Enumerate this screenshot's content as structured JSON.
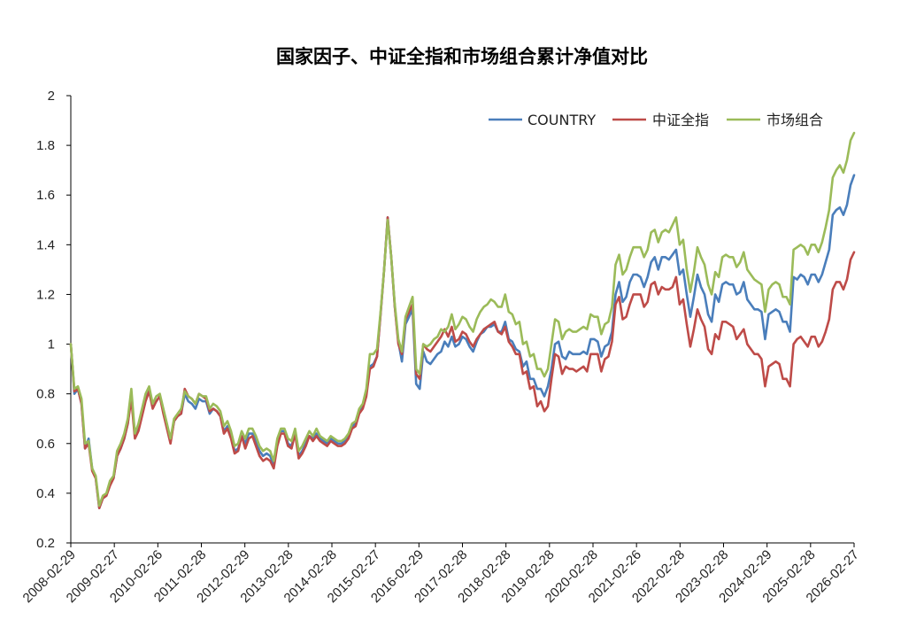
{
  "chart_data": {
    "type": "line",
    "title": "国家因子、中证全指和市场组合累计净值对比",
    "xlabel": "",
    "ylabel": "",
    "ylim": [
      0.2,
      2.0
    ],
    "yticks": [
      "0.2",
      "0.4",
      "0.6",
      "0.8",
      "1",
      "1.2",
      "1.4",
      "1.6",
      "1.8",
      "2"
    ],
    "xticks": [
      "2008-02-29",
      "2009-02-27",
      "2010-02-26",
      "2011-02-28",
      "2012-02-29",
      "2013-02-28",
      "2014-02-28",
      "2015-02-27",
      "2016-02-29",
      "2017-02-28",
      "2018-02-28",
      "2019-02-28",
      "2020-02-28",
      "2021-02-26",
      "2022-02-28",
      "2023-02-28",
      "2024-02-29",
      "2025-02-28",
      "2026-02-27"
    ],
    "grid": false,
    "legend_position": "top-right",
    "x_start": "2008-02",
    "x_end": "2026-02",
    "series": [
      {
        "name": "COUNTRY",
        "color": "#4a7ebb",
        "values": [
          1.0,
          0.8,
          0.82,
          0.76,
          0.58,
          0.62,
          0.5,
          0.46,
          0.34,
          0.38,
          0.39,
          0.44,
          0.46,
          0.55,
          0.58,
          0.62,
          0.68,
          0.8,
          0.63,
          0.66,
          0.72,
          0.78,
          0.82,
          0.75,
          0.77,
          0.79,
          0.73,
          0.67,
          0.61,
          0.69,
          0.71,
          0.72,
          0.8,
          0.77,
          0.76,
          0.74,
          0.78,
          0.77,
          0.77,
          0.72,
          0.74,
          0.73,
          0.71,
          0.65,
          0.67,
          0.63,
          0.57,
          0.58,
          0.63,
          0.6,
          0.64,
          0.64,
          0.61,
          0.57,
          0.55,
          0.56,
          0.55,
          0.51,
          0.6,
          0.65,
          0.65,
          0.6,
          0.59,
          0.65,
          0.55,
          0.57,
          0.6,
          0.63,
          0.62,
          0.64,
          0.62,
          0.61,
          0.6,
          0.62,
          0.61,
          0.6,
          0.6,
          0.61,
          0.63,
          0.67,
          0.68,
          0.73,
          0.75,
          0.8,
          0.91,
          0.92,
          0.95,
          1.12,
          1.3,
          1.51,
          1.35,
          1.15,
          1.01,
          0.93,
          1.08,
          1.11,
          1.14,
          0.84,
          0.82,
          0.97,
          0.93,
          0.92,
          0.94,
          0.96,
          0.97,
          1.01,
          0.99,
          1.03,
          0.99,
          1.0,
          1.03,
          1.02,
          0.99,
          0.97,
          1.01,
          1.04,
          1.05,
          1.07,
          1.07,
          1.08,
          1.05,
          1.05,
          1.09,
          1.02,
          1.01,
          0.98,
          0.97,
          0.91,
          0.93,
          0.86,
          0.86,
          0.82,
          0.82,
          0.79,
          0.83,
          0.9,
          1.0,
          1.01,
          0.95,
          0.94,
          0.97,
          0.96,
          0.96,
          0.96,
          0.97,
          0.96,
          1.02,
          1.02,
          1.01,
          0.95,
          0.99,
          1.0,
          1.05,
          1.2,
          1.25,
          1.17,
          1.19,
          1.25,
          1.28,
          1.28,
          1.27,
          1.23,
          1.27,
          1.33,
          1.35,
          1.3,
          1.35,
          1.35,
          1.34,
          1.36,
          1.38,
          1.28,
          1.3,
          1.2,
          1.11,
          1.19,
          1.28,
          1.23,
          1.2,
          1.12,
          1.09,
          1.2,
          1.17,
          1.24,
          1.25,
          1.24,
          1.24,
          1.2,
          1.21,
          1.25,
          1.18,
          1.16,
          1.14,
          1.14,
          1.13,
          1.02,
          1.12,
          1.13,
          1.14,
          1.13,
          1.09,
          1.09,
          1.05,
          1.27,
          1.26,
          1.28,
          1.27,
          1.24,
          1.28,
          1.28,
          1.25,
          1.28,
          1.33,
          1.38,
          1.52,
          1.54,
          1.55,
          1.52,
          1.56,
          1.64,
          1.68
        ]
      },
      {
        "name": "中证全指",
        "color": "#be4b48",
        "values": [
          1.0,
          0.81,
          0.82,
          0.76,
          0.58,
          0.6,
          0.49,
          0.46,
          0.34,
          0.38,
          0.39,
          0.43,
          0.46,
          0.55,
          0.58,
          0.62,
          0.68,
          0.78,
          0.62,
          0.65,
          0.71,
          0.77,
          0.81,
          0.74,
          0.77,
          0.79,
          0.72,
          0.66,
          0.6,
          0.69,
          0.71,
          0.72,
          0.82,
          0.79,
          0.78,
          0.76,
          0.8,
          0.79,
          0.78,
          0.73,
          0.74,
          0.73,
          0.71,
          0.64,
          0.66,
          0.62,
          0.56,
          0.57,
          0.63,
          0.58,
          0.62,
          0.63,
          0.59,
          0.55,
          0.53,
          0.54,
          0.53,
          0.5,
          0.59,
          0.64,
          0.64,
          0.59,
          0.58,
          0.64,
          0.54,
          0.56,
          0.59,
          0.63,
          0.61,
          0.63,
          0.61,
          0.6,
          0.59,
          0.61,
          0.6,
          0.59,
          0.59,
          0.6,
          0.62,
          0.66,
          0.67,
          0.72,
          0.74,
          0.79,
          0.9,
          0.91,
          0.95,
          1.12,
          1.3,
          1.51,
          1.35,
          1.15,
          1.0,
          0.96,
          1.1,
          1.13,
          1.16,
          0.88,
          0.86,
          1.0,
          0.98,
          0.97,
          0.99,
          1.01,
          1.03,
          1.06,
          1.03,
          1.07,
          1.01,
          1.02,
          1.05,
          1.04,
          1.01,
          0.99,
          1.02,
          1.04,
          1.06,
          1.07,
          1.08,
          1.09,
          1.05,
          1.04,
          1.07,
          1.01,
          0.99,
          0.96,
          0.96,
          0.88,
          0.89,
          0.82,
          0.83,
          0.75,
          0.77,
          0.73,
          0.75,
          0.86,
          0.96,
          0.95,
          0.88,
          0.91,
          0.9,
          0.9,
          0.89,
          0.9,
          0.91,
          0.89,
          0.96,
          0.96,
          0.96,
          0.89,
          0.94,
          0.95,
          1.01,
          1.16,
          1.19,
          1.1,
          1.11,
          1.16,
          1.2,
          1.2,
          1.2,
          1.15,
          1.17,
          1.24,
          1.25,
          1.2,
          1.23,
          1.22,
          1.22,
          1.23,
          1.27,
          1.16,
          1.18,
          1.08,
          0.99,
          1.06,
          1.14,
          1.1,
          1.07,
          0.98,
          0.96,
          1.04,
          1.02,
          1.09,
          1.09,
          1.08,
          1.07,
          1.02,
          1.04,
          1.06,
          1.0,
          0.98,
          0.96,
          0.96,
          0.94,
          0.83,
          0.91,
          0.92,
          0.93,
          0.92,
          0.86,
          0.86,
          0.83,
          1.0,
          1.02,
          1.03,
          1.01,
          0.99,
          1.03,
          1.03,
          0.99,
          1.01,
          1.05,
          1.1,
          1.22,
          1.25,
          1.25,
          1.22,
          1.26,
          1.34,
          1.37
        ]
      },
      {
        "name": "市场组合",
        "color": "#9bbb59",
        "values": [
          1.0,
          0.82,
          0.83,
          0.78,
          0.6,
          0.61,
          0.5,
          0.47,
          0.35,
          0.39,
          0.4,
          0.45,
          0.47,
          0.57,
          0.6,
          0.64,
          0.7,
          0.82,
          0.64,
          0.68,
          0.74,
          0.8,
          0.83,
          0.76,
          0.79,
          0.8,
          0.74,
          0.68,
          0.62,
          0.7,
          0.72,
          0.74,
          0.81,
          0.79,
          0.78,
          0.76,
          0.8,
          0.79,
          0.79,
          0.74,
          0.76,
          0.75,
          0.73,
          0.67,
          0.69,
          0.65,
          0.59,
          0.6,
          0.65,
          0.62,
          0.66,
          0.66,
          0.63,
          0.59,
          0.57,
          0.58,
          0.57,
          0.53,
          0.62,
          0.66,
          0.66,
          0.62,
          0.61,
          0.66,
          0.57,
          0.59,
          0.62,
          0.65,
          0.63,
          0.66,
          0.63,
          0.62,
          0.61,
          0.63,
          0.62,
          0.61,
          0.61,
          0.62,
          0.64,
          0.68,
          0.69,
          0.74,
          0.76,
          0.82,
          0.96,
          0.96,
          0.98,
          1.13,
          1.3,
          1.5,
          1.35,
          1.16,
          1.02,
          0.97,
          1.11,
          1.15,
          1.19,
          0.9,
          0.88,
          1.0,
          0.99,
          1.0,
          1.02,
          1.03,
          1.06,
          1.05,
          1.07,
          1.12,
          1.06,
          1.08,
          1.11,
          1.1,
          1.07,
          1.05,
          1.1,
          1.13,
          1.15,
          1.16,
          1.18,
          1.17,
          1.15,
          1.15,
          1.2,
          1.13,
          1.12,
          1.08,
          1.09,
          1.0,
          1.01,
          0.95,
          0.96,
          0.9,
          0.9,
          0.87,
          0.9,
          1.0,
          1.1,
          1.09,
          1.02,
          1.05,
          1.06,
          1.05,
          1.05,
          1.06,
          1.07,
          1.06,
          1.12,
          1.11,
          1.11,
          1.04,
          1.08,
          1.09,
          1.15,
          1.32,
          1.36,
          1.28,
          1.3,
          1.35,
          1.39,
          1.39,
          1.39,
          1.35,
          1.38,
          1.45,
          1.46,
          1.41,
          1.45,
          1.46,
          1.45,
          1.48,
          1.51,
          1.4,
          1.42,
          1.3,
          1.21,
          1.29,
          1.39,
          1.35,
          1.32,
          1.24,
          1.2,
          1.29,
          1.27,
          1.35,
          1.36,
          1.35,
          1.35,
          1.31,
          1.33,
          1.37,
          1.3,
          1.28,
          1.26,
          1.25,
          1.24,
          1.13,
          1.22,
          1.24,
          1.25,
          1.24,
          1.19,
          1.19,
          1.16,
          1.38,
          1.39,
          1.4,
          1.39,
          1.36,
          1.4,
          1.4,
          1.37,
          1.41,
          1.47,
          1.54,
          1.67,
          1.7,
          1.72,
          1.69,
          1.74,
          1.82,
          1.85
        ]
      }
    ]
  }
}
